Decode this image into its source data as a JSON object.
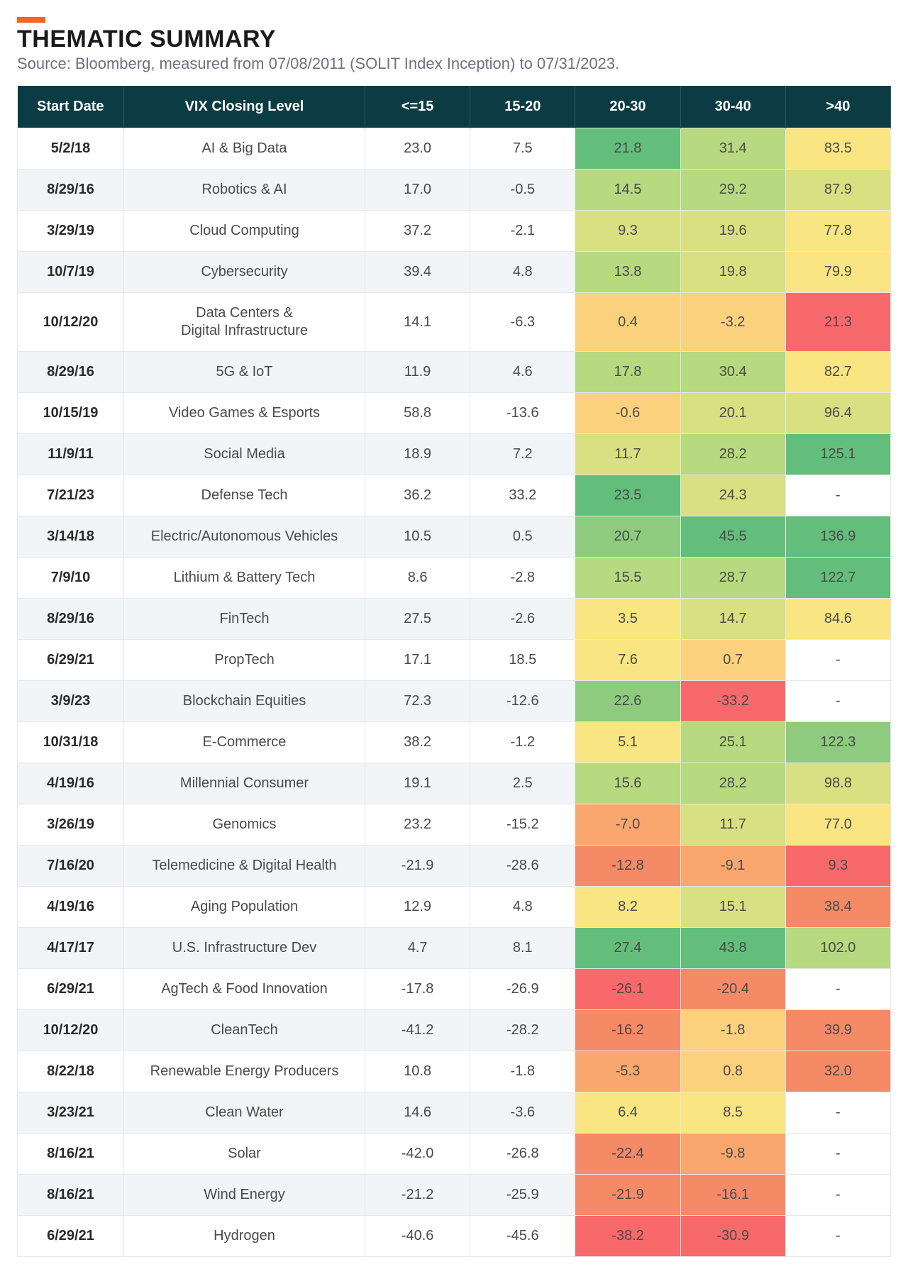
{
  "header": {
    "accent_color": "#f26522",
    "title": "THEMATIC SUMMARY",
    "source": "Source: Bloomberg, measured from 07/08/2011 (SOLIT Index Inception) to 07/31/2023."
  },
  "table": {
    "header_bg": "#0b3c44",
    "alt_row_bg": "#f1f5f7",
    "row_bg": "#ffffff",
    "heat_palette": {
      "dark_green": "#63be7b",
      "green": "#8ecb7e",
      "light_green": "#b7d980",
      "yellow_green": "#d8e082",
      "yellow": "#f9e683",
      "light_orange": "#fcd17d",
      "orange": "#f9a76f",
      "dark_orange": "#f58a67",
      "red": "#f8696b",
      "none": "#ffffff"
    },
    "columns": [
      "Start Date",
      "VIX Closing Level",
      "<=15",
      "15-20",
      "20-30",
      "30-40",
      ">40"
    ],
    "rows": [
      {
        "date": "5/2/18",
        "name": "AI & Big Data",
        "v": [
          "23.0",
          "7.5",
          "21.8",
          "31.4",
          "83.5"
        ],
        "c": [
          null,
          null,
          "dark_green",
          "light_green",
          "yellow"
        ]
      },
      {
        "date": "8/29/16",
        "name": "Robotics & AI",
        "v": [
          "17.0",
          "-0.5",
          "14.5",
          "29.2",
          "87.9"
        ],
        "c": [
          null,
          null,
          "light_green",
          "light_green",
          "yellow_green"
        ]
      },
      {
        "date": "3/29/19",
        "name": "Cloud Computing",
        "v": [
          "37.2",
          "-2.1",
          "9.3",
          "19.6",
          "77.8"
        ],
        "c": [
          null,
          null,
          "yellow_green",
          "yellow_green",
          "yellow"
        ]
      },
      {
        "date": "10/7/19",
        "name": "Cybersecurity",
        "v": [
          "39.4",
          "4.8",
          "13.8",
          "19.8",
          "79.9"
        ],
        "c": [
          null,
          null,
          "light_green",
          "yellow_green",
          "yellow"
        ]
      },
      {
        "date": "10/12/20",
        "name": "Data Centers &\nDigital Infrastructure",
        "v": [
          "14.1",
          "-6.3",
          "0.4",
          "-3.2",
          "21.3"
        ],
        "c": [
          null,
          null,
          "light_orange",
          "light_orange",
          "red"
        ]
      },
      {
        "date": "8/29/16",
        "name": "5G & IoT",
        "v": [
          "11.9",
          "4.6",
          "17.8",
          "30.4",
          "82.7"
        ],
        "c": [
          null,
          null,
          "light_green",
          "light_green",
          "yellow"
        ]
      },
      {
        "date": "10/15/19",
        "name": "Video Games & Esports",
        "v": [
          "58.8",
          "-13.6",
          "-0.6",
          "20.1",
          "96.4"
        ],
        "c": [
          null,
          null,
          "light_orange",
          "yellow_green",
          "yellow_green"
        ]
      },
      {
        "date": "11/9/11",
        "name": "Social Media",
        "v": [
          "18.9",
          "7.2",
          "11.7",
          "28.2",
          "125.1"
        ],
        "c": [
          null,
          null,
          "yellow_green",
          "light_green",
          "dark_green"
        ]
      },
      {
        "date": "7/21/23",
        "name": "Defense Tech",
        "v": [
          "36.2",
          "33.2",
          "23.5",
          "24.3",
          "-"
        ],
        "c": [
          null,
          null,
          "dark_green",
          "yellow_green",
          "none"
        ]
      },
      {
        "date": "3/14/18",
        "name": "Electric/Autonomous Vehicles",
        "v": [
          "10.5",
          "0.5",
          "20.7",
          "45.5",
          "136.9"
        ],
        "c": [
          null,
          null,
          "green",
          "dark_green",
          "dark_green"
        ]
      },
      {
        "date": "7/9/10",
        "name": "Lithium & Battery Tech",
        "v": [
          "8.6",
          "-2.8",
          "15.5",
          "28.7",
          "122.7"
        ],
        "c": [
          null,
          null,
          "light_green",
          "light_green",
          "dark_green"
        ]
      },
      {
        "date": "8/29/16",
        "name": "FinTech",
        "v": [
          "27.5",
          "-2.6",
          "3.5",
          "14.7",
          "84.6"
        ],
        "c": [
          null,
          null,
          "yellow",
          "yellow_green",
          "yellow"
        ]
      },
      {
        "date": "6/29/21",
        "name": "PropTech",
        "v": [
          "17.1",
          "18.5",
          "7.6",
          "0.7",
          "-"
        ],
        "c": [
          null,
          null,
          "yellow",
          "light_orange",
          "none"
        ]
      },
      {
        "date": "3/9/23",
        "name": "Blockchain Equities",
        "v": [
          "72.3",
          "-12.6",
          "22.6",
          "-33.2",
          "-"
        ],
        "c": [
          null,
          null,
          "green",
          "red",
          "none"
        ]
      },
      {
        "date": "10/31/18",
        "name": "E-Commerce",
        "v": [
          "38.2",
          "-1.2",
          "5.1",
          "25.1",
          "122.3"
        ],
        "c": [
          null,
          null,
          "yellow",
          "light_green",
          "green"
        ]
      },
      {
        "date": "4/19/16",
        "name": "Millennial Consumer",
        "v": [
          "19.1",
          "2.5",
          "15.6",
          "28.2",
          "98.8"
        ],
        "c": [
          null,
          null,
          "light_green",
          "light_green",
          "yellow_green"
        ]
      },
      {
        "date": "3/26/19",
        "name": "Genomics",
        "v": [
          "23.2",
          "-15.2",
          "-7.0",
          "11.7",
          "77.0"
        ],
        "c": [
          null,
          null,
          "orange",
          "yellow_green",
          "yellow"
        ]
      },
      {
        "date": "7/16/20",
        "name": "Telemedicine & Digital Health",
        "v": [
          "-21.9",
          "-28.6",
          "-12.8",
          "-9.1",
          "9.3"
        ],
        "c": [
          null,
          null,
          "dark_orange",
          "orange",
          "red"
        ]
      },
      {
        "date": "4/19/16",
        "name": "Aging Population",
        "v": [
          "12.9",
          "4.8",
          "8.2",
          "15.1",
          "38.4"
        ],
        "c": [
          null,
          null,
          "yellow",
          "yellow_green",
          "dark_orange"
        ]
      },
      {
        "date": "4/17/17",
        "name": "U.S. Infrastructure Dev",
        "v": [
          "4.7",
          "8.1",
          "27.4",
          "43.8",
          "102.0"
        ],
        "c": [
          null,
          null,
          "dark_green",
          "dark_green",
          "light_green"
        ]
      },
      {
        "date": "6/29/21",
        "name": "AgTech & Food Innovation",
        "v": [
          "-17.8",
          "-26.9",
          "-26.1",
          "-20.4",
          "-"
        ],
        "c": [
          null,
          null,
          "red",
          "dark_orange",
          "none"
        ]
      },
      {
        "date": "10/12/20",
        "name": "CleanTech",
        "v": [
          "-41.2",
          "-28.2",
          "-16.2",
          "-1.8",
          "39.9"
        ],
        "c": [
          null,
          null,
          "dark_orange",
          "light_orange",
          "dark_orange"
        ]
      },
      {
        "date": "8/22/18",
        "name": "Renewable Energy Producers",
        "v": [
          "10.8",
          "-1.8",
          "-5.3",
          "0.8",
          "32.0"
        ],
        "c": [
          null,
          null,
          "orange",
          "light_orange",
          "dark_orange"
        ]
      },
      {
        "date": "3/23/21",
        "name": "Clean Water",
        "v": [
          "14.6",
          "-3.6",
          "6.4",
          "8.5",
          "-"
        ],
        "c": [
          null,
          null,
          "yellow",
          "yellow",
          "none"
        ]
      },
      {
        "date": "8/16/21",
        "name": "Solar",
        "v": [
          "-42.0",
          "-26.8",
          "-22.4",
          "-9.8",
          "-"
        ],
        "c": [
          null,
          null,
          "dark_orange",
          "orange",
          "none"
        ]
      },
      {
        "date": "8/16/21",
        "name": "Wind Energy",
        "v": [
          "-21.2",
          "-25.9",
          "-21.9",
          "-16.1",
          "-"
        ],
        "c": [
          null,
          null,
          "dark_orange",
          "dark_orange",
          "none"
        ]
      },
      {
        "date": "6/29/21",
        "name": "Hydrogen",
        "v": [
          "-40.6",
          "-45.6",
          "-38.2",
          "-30.9",
          "-"
        ],
        "c": [
          null,
          null,
          "red",
          "red",
          "none"
        ]
      }
    ]
  }
}
